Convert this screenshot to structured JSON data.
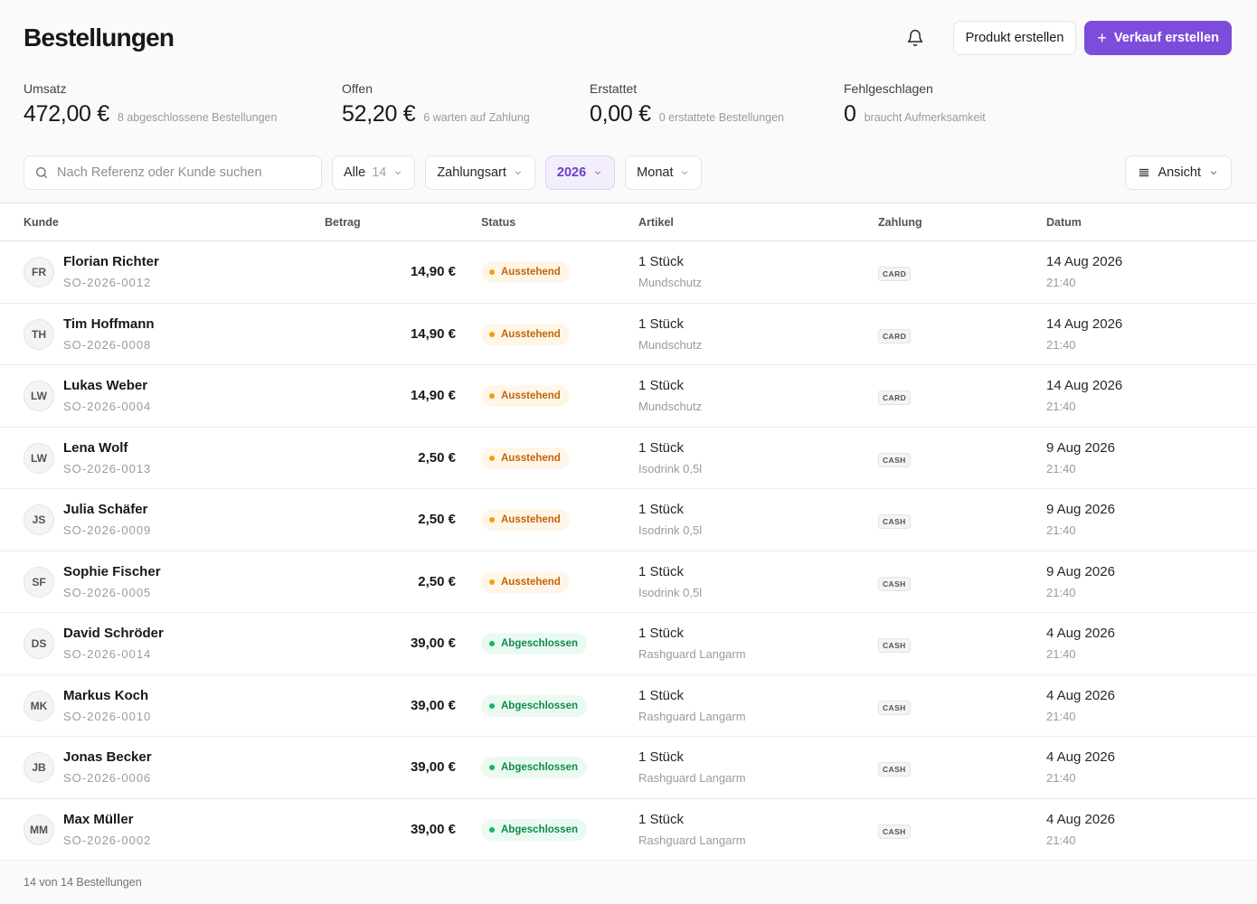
{
  "page": {
    "title": "Bestellungen"
  },
  "header": {
    "create_product_label": "Produkt erstellen",
    "create_sale_label": "Verkauf erstellen"
  },
  "stats": [
    {
      "label": "Umsatz",
      "value": "472,00 €",
      "sub": "8 abgeschlossene Bestellungen"
    },
    {
      "label": "Offen",
      "value": "52,20 €",
      "sub": "6 warten auf Zahlung"
    },
    {
      "label": "Erstattet",
      "value": "0,00 €",
      "sub": "0 erstattete Bestellungen"
    },
    {
      "label": "Fehlgeschlagen",
      "value": "0",
      "sub": "braucht Aufmerksamkeit"
    }
  ],
  "filters": {
    "search_placeholder": "Nach Referenz oder Kunde suchen",
    "status_label": "Alle",
    "status_count": "14",
    "payment_label": "Zahlungsart",
    "year_label": "2026",
    "month_label": "Monat",
    "view_label": "Ansicht"
  },
  "table": {
    "columns": [
      "Kunde",
      "Betrag",
      "Status",
      "Artikel",
      "Zahlung",
      "Datum"
    ],
    "rows": [
      {
        "initials": "FR",
        "name": "Florian Richter",
        "ref": "SO-2026-0012",
        "amount": "14,90 €",
        "status": "Ausstehend",
        "qty": "1 Stück",
        "product": "Mundschutz",
        "payment": "CARD",
        "date": "14 Aug 2026",
        "time": "21:40"
      },
      {
        "initials": "TH",
        "name": "Tim Hoffmann",
        "ref": "SO-2026-0008",
        "amount": "14,90 €",
        "status": "Ausstehend",
        "qty": "1 Stück",
        "product": "Mundschutz",
        "payment": "CARD",
        "date": "14 Aug 2026",
        "time": "21:40"
      },
      {
        "initials": "LW",
        "name": "Lukas Weber",
        "ref": "SO-2026-0004",
        "amount": "14,90 €",
        "status": "Ausstehend",
        "qty": "1 Stück",
        "product": "Mundschutz",
        "payment": "CARD",
        "date": "14 Aug 2026",
        "time": "21:40"
      },
      {
        "initials": "LW",
        "name": "Lena Wolf",
        "ref": "SO-2026-0013",
        "amount": "2,50 €",
        "status": "Ausstehend",
        "qty": "1 Stück",
        "product": "Isodrink 0,5l",
        "payment": "CASH",
        "date": "9 Aug 2026",
        "time": "21:40"
      },
      {
        "initials": "JS",
        "name": "Julia Schäfer",
        "ref": "SO-2026-0009",
        "amount": "2,50 €",
        "status": "Ausstehend",
        "qty": "1 Stück",
        "product": "Isodrink 0,5l",
        "payment": "CASH",
        "date": "9 Aug 2026",
        "time": "21:40"
      },
      {
        "initials": "SF",
        "name": "Sophie Fischer",
        "ref": "SO-2026-0005",
        "amount": "2,50 €",
        "status": "Ausstehend",
        "qty": "1 Stück",
        "product": "Isodrink 0,5l",
        "payment": "CASH",
        "date": "9 Aug 2026",
        "time": "21:40"
      },
      {
        "initials": "DS",
        "name": "David Schröder",
        "ref": "SO-2026-0014",
        "amount": "39,00 €",
        "status": "Abgeschlossen",
        "qty": "1 Stück",
        "product": "Rashguard Langarm",
        "payment": "CASH",
        "date": "4 Aug 2026",
        "time": "21:40"
      },
      {
        "initials": "MK",
        "name": "Markus Koch",
        "ref": "SO-2026-0010",
        "amount": "39,00 €",
        "status": "Abgeschlossen",
        "qty": "1 Stück",
        "product": "Rashguard Langarm",
        "payment": "CASH",
        "date": "4 Aug 2026",
        "time": "21:40"
      },
      {
        "initials": "JB",
        "name": "Jonas Becker",
        "ref": "SO-2026-0006",
        "amount": "39,00 €",
        "status": "Abgeschlossen",
        "qty": "1 Stück",
        "product": "Rashguard Langarm",
        "payment": "CASH",
        "date": "4 Aug 2026",
        "time": "21:40"
      },
      {
        "initials": "MM",
        "name": "Max Müller",
        "ref": "SO-2026-0002",
        "amount": "39,00 €",
        "status": "Abgeschlossen",
        "qty": "1 Stück",
        "product": "Rashguard Langarm",
        "payment": "CASH",
        "date": "4 Aug 2026",
        "time": "21:40"
      }
    ]
  },
  "footer": {
    "summary": "14 von 14 Bestellungen"
  },
  "colors": {
    "accent": "#7c4ddb",
    "pending": "#c2640a",
    "completed": "#0f8a4e"
  }
}
